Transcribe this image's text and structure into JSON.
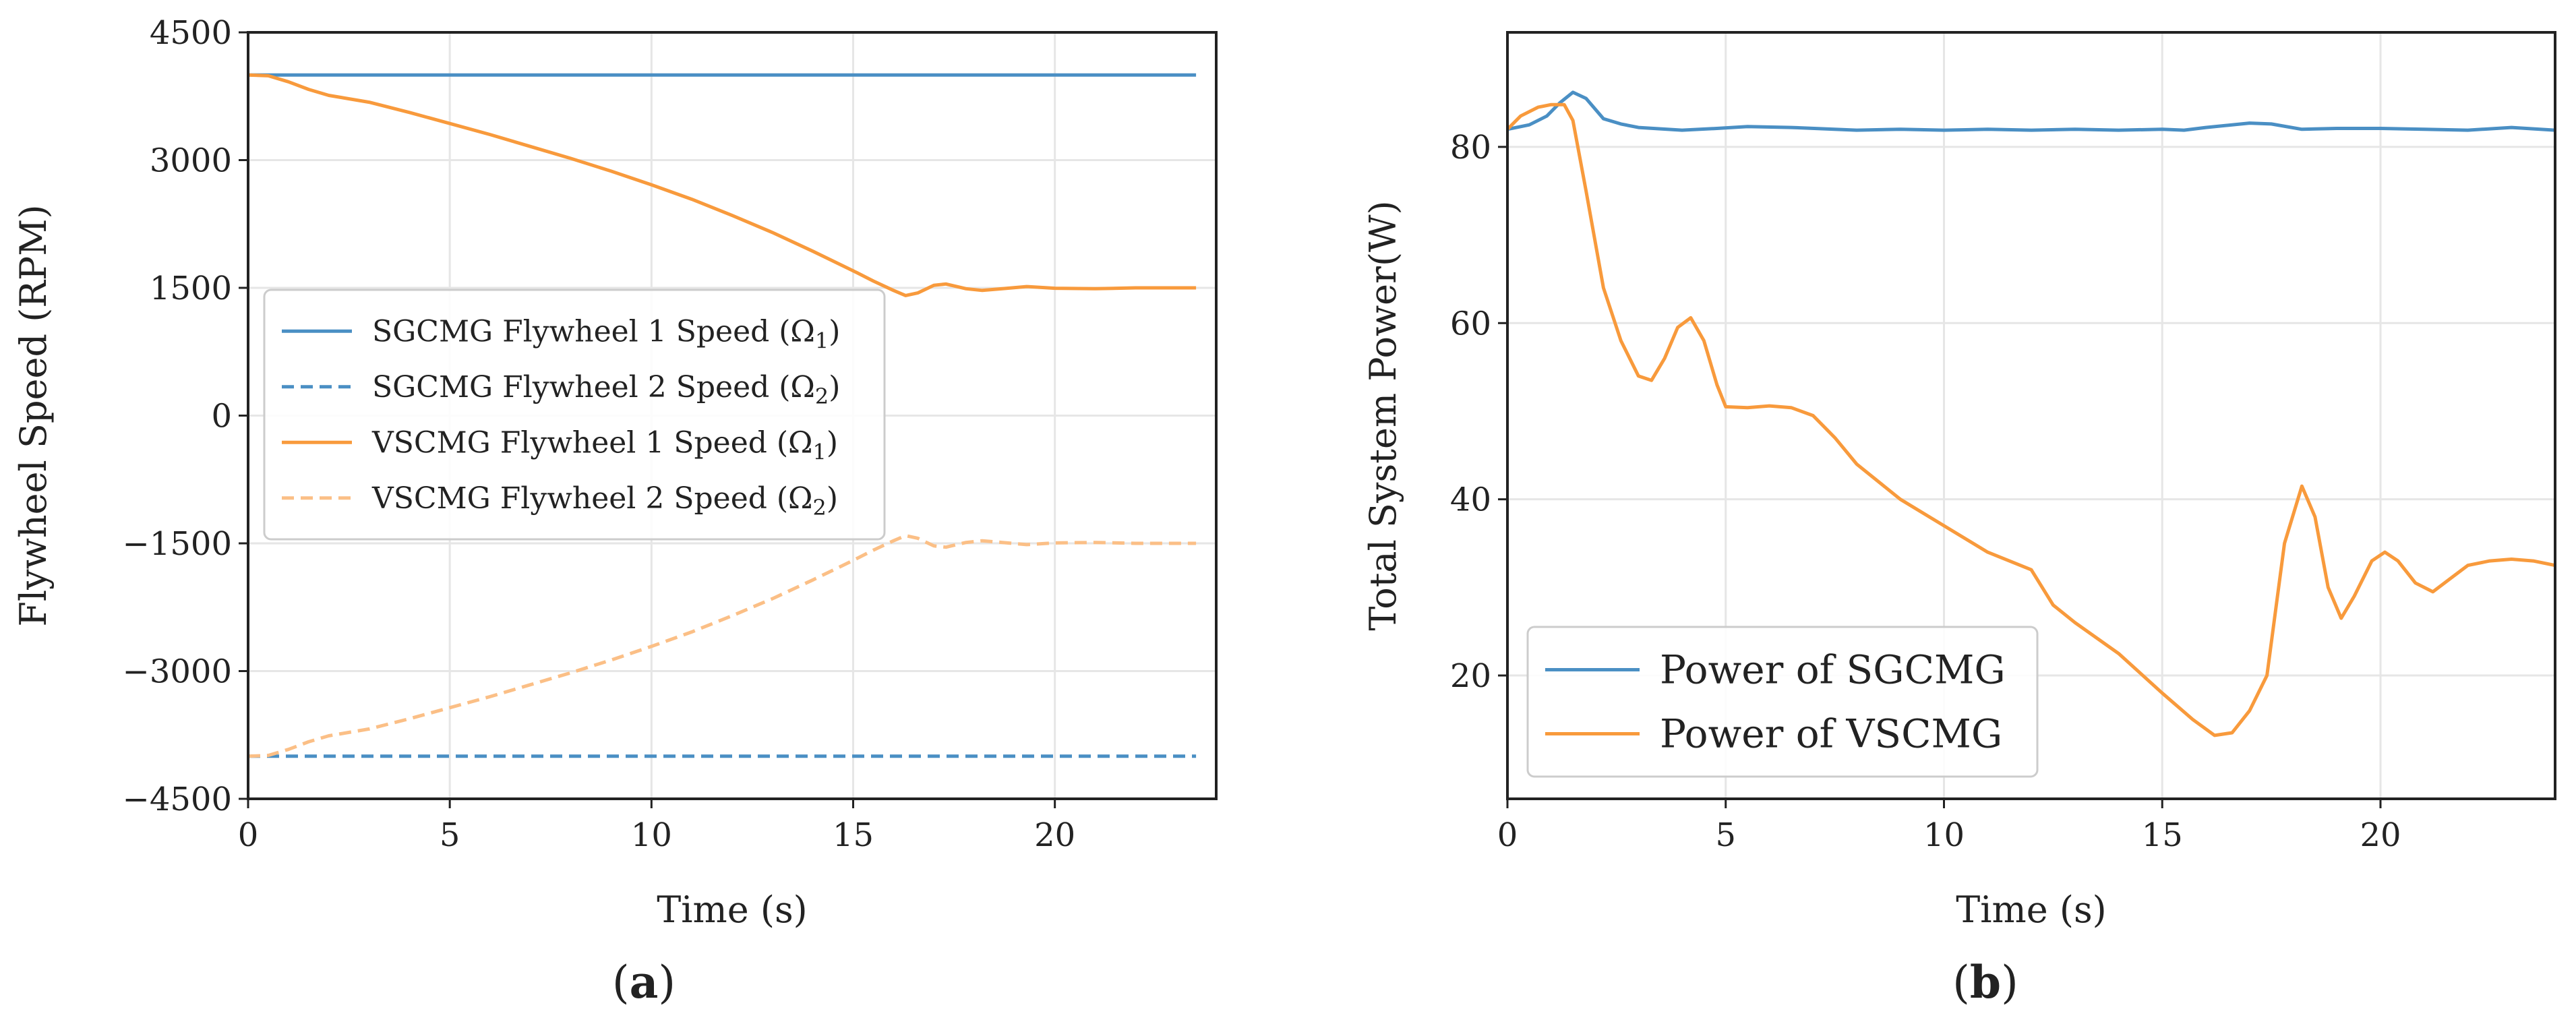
{
  "colors": {
    "sgcmg": "#4a8fc4",
    "vscmg": "#f89a3c",
    "vscmg_light": "#fbbf86",
    "grid": "#e6e6e6",
    "text": "#222222"
  },
  "panels": {
    "a": {
      "label_open": "(",
      "label_letter": "a",
      "label_close": ")"
    },
    "b": {
      "label_open": "(",
      "label_letter": "b",
      "label_close": ")"
    }
  },
  "chart_data": [
    {
      "type": "line",
      "id": "a",
      "xlabel": "Time (s)",
      "ylabel": "Flywheel Speed (RPM)",
      "xlim": [
        0,
        24
      ],
      "ylim": [
        -4500,
        4500
      ],
      "xticks": [
        0,
        5,
        10,
        15,
        20
      ],
      "yticks": [
        -4500,
        -3000,
        -1500,
        0,
        1500,
        3000,
        4500
      ],
      "ytick_labels": [
        "−4500",
        "−3000",
        "−1500",
        "0",
        "1500",
        "3000",
        "4500"
      ],
      "xtick_labels": [
        "0",
        "5",
        "10",
        "15",
        "20"
      ],
      "grid": true,
      "legend_position": "center-left",
      "series": [
        {
          "name": "SGCMG Flywheel 1 Speed (Ω₁)",
          "legend_main": "SGCMG Flywheel 1 Speed (Ω",
          "legend_sub": "1",
          "legend_end": ")",
          "color_key": "sgcmg",
          "dash": false,
          "x": [
            0,
            5,
            10,
            15,
            20,
            23.5
          ],
          "y": [
            4000,
            4000,
            4000,
            4000,
            4000,
            4000
          ]
        },
        {
          "name": "SGCMG Flywheel 2 Speed (Ω₂)",
          "legend_main": "SGCMG Flywheel 2 Speed (Ω",
          "legend_sub": "2",
          "legend_end": ")",
          "color_key": "sgcmg",
          "dash": true,
          "x": [
            0,
            5,
            10,
            15,
            20,
            23.5
          ],
          "y": [
            -4000,
            -4000,
            -4000,
            -4000,
            -4000,
            -4000
          ]
        },
        {
          "name": "VSCMG Flywheel 1 Speed (Ω₁)",
          "legend_main": "VSCMG Flywheel 1 Speed (Ω",
          "legend_sub": "1",
          "legend_end": ")",
          "color_key": "vscmg",
          "dash": false,
          "x": [
            0,
            0.5,
            1,
            1.5,
            2,
            3,
            4,
            5,
            6,
            7,
            8,
            9,
            10,
            11,
            12,
            13,
            14,
            15,
            15.5,
            16,
            16.3,
            16.6,
            17,
            17.3,
            17.8,
            18.2,
            18.7,
            19.3,
            20,
            21,
            22,
            23.5
          ],
          "y": [
            4000,
            3990,
            3920,
            3830,
            3760,
            3680,
            3560,
            3430,
            3300,
            3160,
            3020,
            2870,
            2710,
            2540,
            2350,
            2150,
            1930,
            1700,
            1580,
            1470,
            1410,
            1440,
            1530,
            1545,
            1490,
            1470,
            1490,
            1515,
            1495,
            1490,
            1500,
            1500
          ]
        },
        {
          "name": "VSCMG Flywheel 2 Speed (Ω₂)",
          "legend_main": "VSCMG Flywheel 2 Speed (Ω",
          "legend_sub": "2",
          "legend_end": ")",
          "color_key": "vscmg_light",
          "dash": true,
          "x": [
            0,
            0.5,
            1,
            1.5,
            2,
            3,
            4,
            5,
            6,
            7,
            8,
            9,
            10,
            11,
            12,
            13,
            14,
            15,
            15.5,
            16,
            16.3,
            16.6,
            17,
            17.3,
            17.8,
            18.2,
            18.7,
            19.3,
            20,
            21,
            22,
            23.5
          ],
          "y": [
            -4000,
            -3990,
            -3920,
            -3830,
            -3760,
            -3680,
            -3560,
            -3430,
            -3300,
            -3160,
            -3020,
            -2870,
            -2710,
            -2540,
            -2350,
            -2150,
            -1930,
            -1700,
            -1580,
            -1470,
            -1410,
            -1440,
            -1530,
            -1545,
            -1490,
            -1470,
            -1490,
            -1515,
            -1495,
            -1490,
            -1500,
            -1500
          ]
        }
      ]
    },
    {
      "type": "line",
      "id": "b",
      "xlabel": "Time (s)",
      "ylabel": "Total System Power(W)",
      "xlim": [
        0,
        24
      ],
      "ylim": [
        6,
        93
      ],
      "xticks": [
        0,
        5,
        10,
        15,
        20
      ],
      "yticks": [
        20,
        40,
        60,
        80
      ],
      "ytick_labels": [
        "20",
        "40",
        "60",
        "80"
      ],
      "xtick_labels": [
        "0",
        "5",
        "10",
        "15",
        "20"
      ],
      "grid": true,
      "legend_position": "bottom-left",
      "series": [
        {
          "name": "Power of SGCMG",
          "legend_main": "Power of SGCMG",
          "legend_sub": "",
          "legend_end": "",
          "color_key": "sgcmg",
          "dash": false,
          "x": [
            0,
            0.5,
            0.9,
            1.2,
            1.5,
            1.8,
            2.2,
            2.6,
            3,
            4,
            4.8,
            5.5,
            6.5,
            8,
            9,
            10,
            11,
            12,
            13,
            14,
            15,
            15.5,
            16,
            17,
            17.5,
            18.2,
            19,
            20,
            21,
            22,
            23,
            24
          ],
          "y": [
            82,
            82.5,
            83.5,
            85,
            86.2,
            85.5,
            83.2,
            82.6,
            82.2,
            81.9,
            82.1,
            82.3,
            82.2,
            81.9,
            82,
            81.9,
            82,
            81.9,
            82,
            81.9,
            82,
            81.9,
            82.2,
            82.7,
            82.6,
            82,
            82.1,
            82.1,
            82,
            81.9,
            82.2,
            81.9
          ]
        },
        {
          "name": "Power of VSCMG",
          "legend_main": "Power of VSCMG",
          "legend_sub": "",
          "legend_end": "",
          "color_key": "vscmg",
          "dash": false,
          "x": [
            0,
            0.3,
            0.7,
            1,
            1.3,
            1.5,
            1.8,
            2.2,
            2.6,
            3,
            3.3,
            3.6,
            3.9,
            4.2,
            4.5,
            4.8,
            5,
            5.5,
            6,
            6.5,
            7,
            7.5,
            8,
            9,
            10,
            11,
            12,
            12.5,
            13,
            14,
            15,
            15.7,
            16.2,
            16.6,
            17,
            17.4,
            17.8,
            18.2,
            18.5,
            18.8,
            19.1,
            19.4,
            19.8,
            20.1,
            20.4,
            20.8,
            21.2,
            21.6,
            22,
            22.5,
            23,
            23.5,
            24
          ],
          "y": [
            82,
            83.5,
            84.5,
            84.8,
            84.8,
            83,
            75,
            64,
            58,
            54,
            53.5,
            56,
            59.5,
            60.6,
            58,
            53,
            50.5,
            50.4,
            50.6,
            50.4,
            49.5,
            47,
            44,
            40,
            37,
            34,
            32,
            28,
            26,
            22.5,
            18,
            15,
            13.2,
            13.5,
            16,
            20,
            35,
            41.5,
            38,
            30,
            26.5,
            29,
            33,
            34,
            33,
            30.5,
            29.5,
            31,
            32.5,
            33,
            33.2,
            33,
            32.5
          ]
        }
      ]
    }
  ]
}
